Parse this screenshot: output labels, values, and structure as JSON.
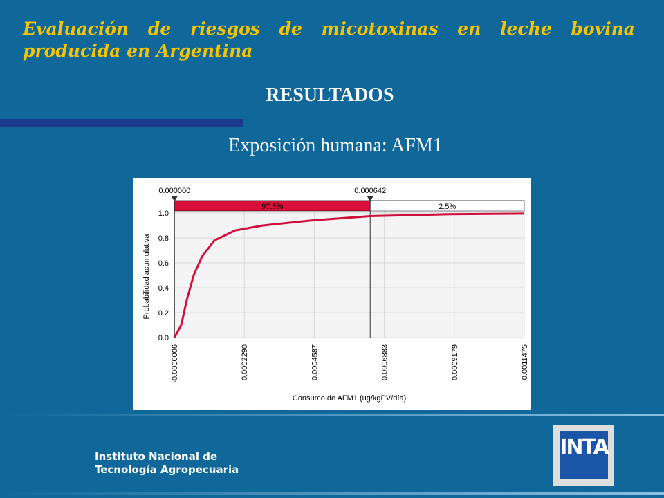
{
  "slide": {
    "title": "Evaluación de riesgos de micotoxinas en leche bovina producida en Argentina",
    "heading": "RESULTADOS",
    "subtitle": "Exposición humana: AFM1",
    "footer": [
      "Instituto Nacional de",
      "Tecnología Agropecuaria"
    ],
    "logo": "INTA"
  },
  "chart_data": {
    "type": "line",
    "x_label": "Consumo de AFM1 (ug/kgPV/día)",
    "y_label": "Probabilidad  acumulativa",
    "x": [
      0,
      2.21e-05,
      4.02e-05,
      6.29e-05,
      9.02e-05,
      0.000131,
      0.0001991,
      0.0002898,
      0.0004487,
      0.0006415,
      0.0009025,
      0.0011475
    ],
    "values": [
      0,
      0.1,
      0.3,
      0.5,
      0.65,
      0.78,
      0.86,
      0.9,
      0.94,
      0.975,
      0.99,
      0.995
    ],
    "color": "#d0103a",
    "xlim": [
      -6e-07,
      0.0011475
    ],
    "xticks": [
      {
        "value": -6e-07,
        "label": "-0.0000006"
      },
      {
        "value": 0.000229,
        "label": "0.0002290"
      },
      0.0004587,
      0.0006883,
      0.0009179,
      0.0011475
    ],
    "ylim": [
      0,
      1.1
    ],
    "yticks": [
      {
        "value": 0,
        "label": "0.0"
      },
      0.2,
      0.4,
      0.6,
      0.8,
      {
        "value": 1,
        "label": "1.0"
      }
    ],
    "grid": true,
    "delimiters": [
      {
        "value": 0,
        "label": "0.000000"
      },
      {
        "value": 0.000642,
        "label": "0.000642"
      }
    ],
    "region_values": [
      97.5,
      2.5
    ],
    "region_labels": [
      "97.5%",
      "2.5%"
    ],
    "region_colors": [
      "#d8103a",
      "#ffffff"
    ]
  }
}
